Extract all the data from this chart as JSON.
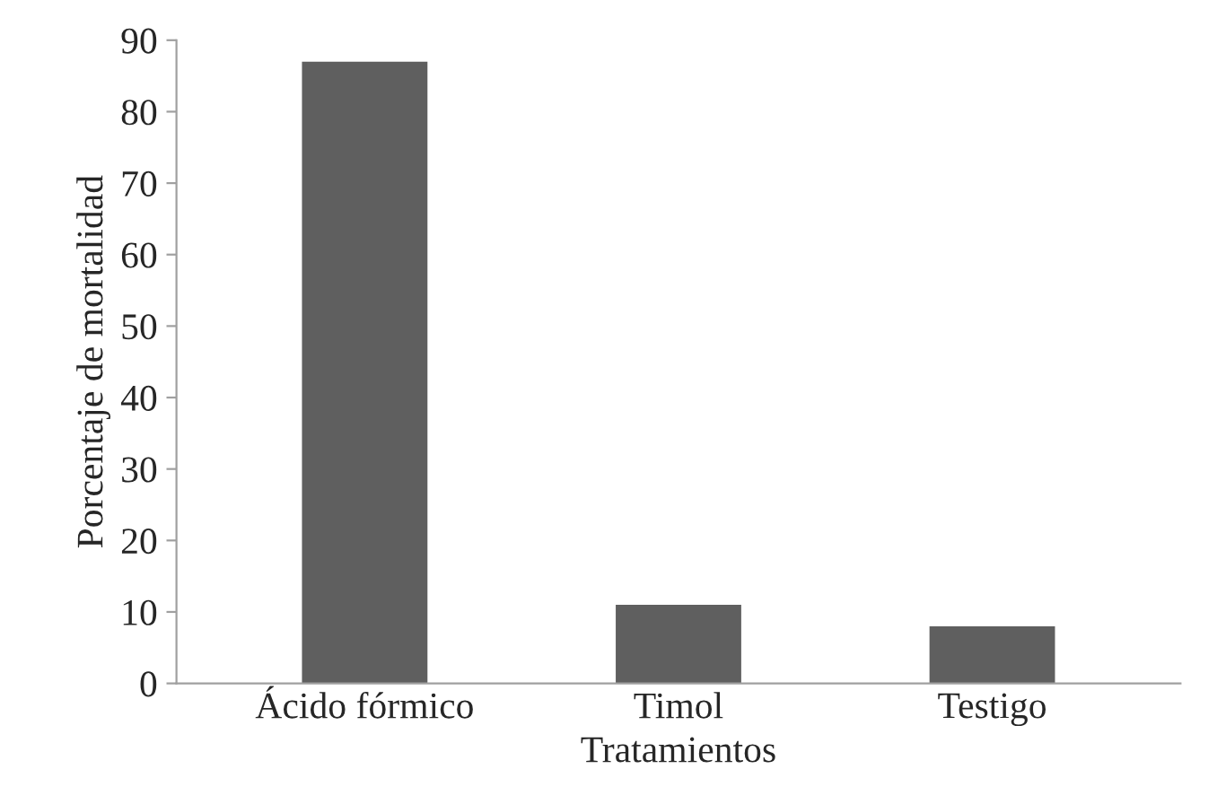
{
  "chart_data": {
    "type": "bar",
    "xlabel": "Tratamientos",
    "ylabel": "Porcentaje de mortalidad",
    "categories": [
      "Ácido fórmico",
      "Timol",
      "Testigo"
    ],
    "values": [
      87,
      11,
      8
    ],
    "color": "#5f5f5f",
    "ylim": [
      0,
      90
    ],
    "yticks": [
      0,
      10,
      20,
      30,
      40,
      50,
      60,
      70,
      80,
      90
    ],
    "grid": false
  }
}
